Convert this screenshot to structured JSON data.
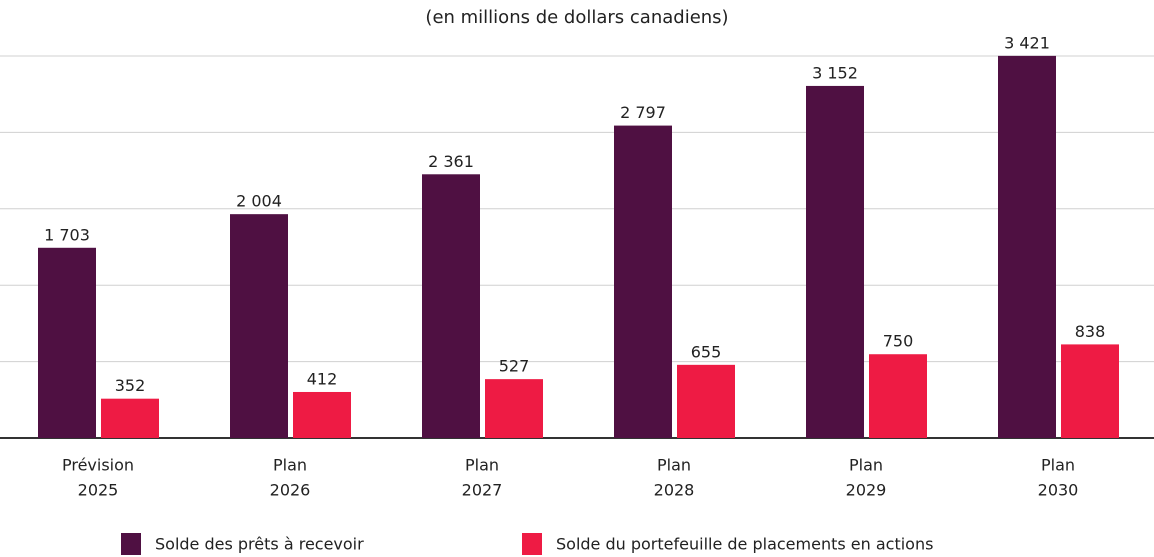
{
  "chart_data": {
    "type": "bar",
    "title": "(en millions de dollars canadiens)",
    "categories": [
      [
        "Prévision",
        "2025"
      ],
      [
        "Plan",
        "2026"
      ],
      [
        "Plan",
        "2027"
      ],
      [
        "Plan",
        "2028"
      ],
      [
        "Plan",
        "2029"
      ],
      [
        "Plan",
        "2030"
      ]
    ],
    "series": [
      {
        "name": "Solde des prêts à recevoir",
        "color": "#4f1042",
        "values": [
          1703,
          2004,
          2361,
          2797,
          3152,
          3421
        ],
        "value_labels": [
          "1 703",
          "2 004",
          "2 361",
          "2 797",
          "3 152",
          "3 421"
        ]
      },
      {
        "name": "Solde du portefeuille de placements en actions",
        "color": "#ee1b44",
        "values": [
          352,
          412,
          527,
          655,
          750,
          838
        ],
        "value_labels": [
          "352",
          "412",
          "527",
          "655",
          "750",
          "838"
        ]
      }
    ],
    "ylim": [
      0,
      3420
    ],
    "yticks": [
      0,
      684,
      1368,
      2052,
      2736,
      3420
    ],
    "grid": true,
    "legend": "bottom"
  }
}
